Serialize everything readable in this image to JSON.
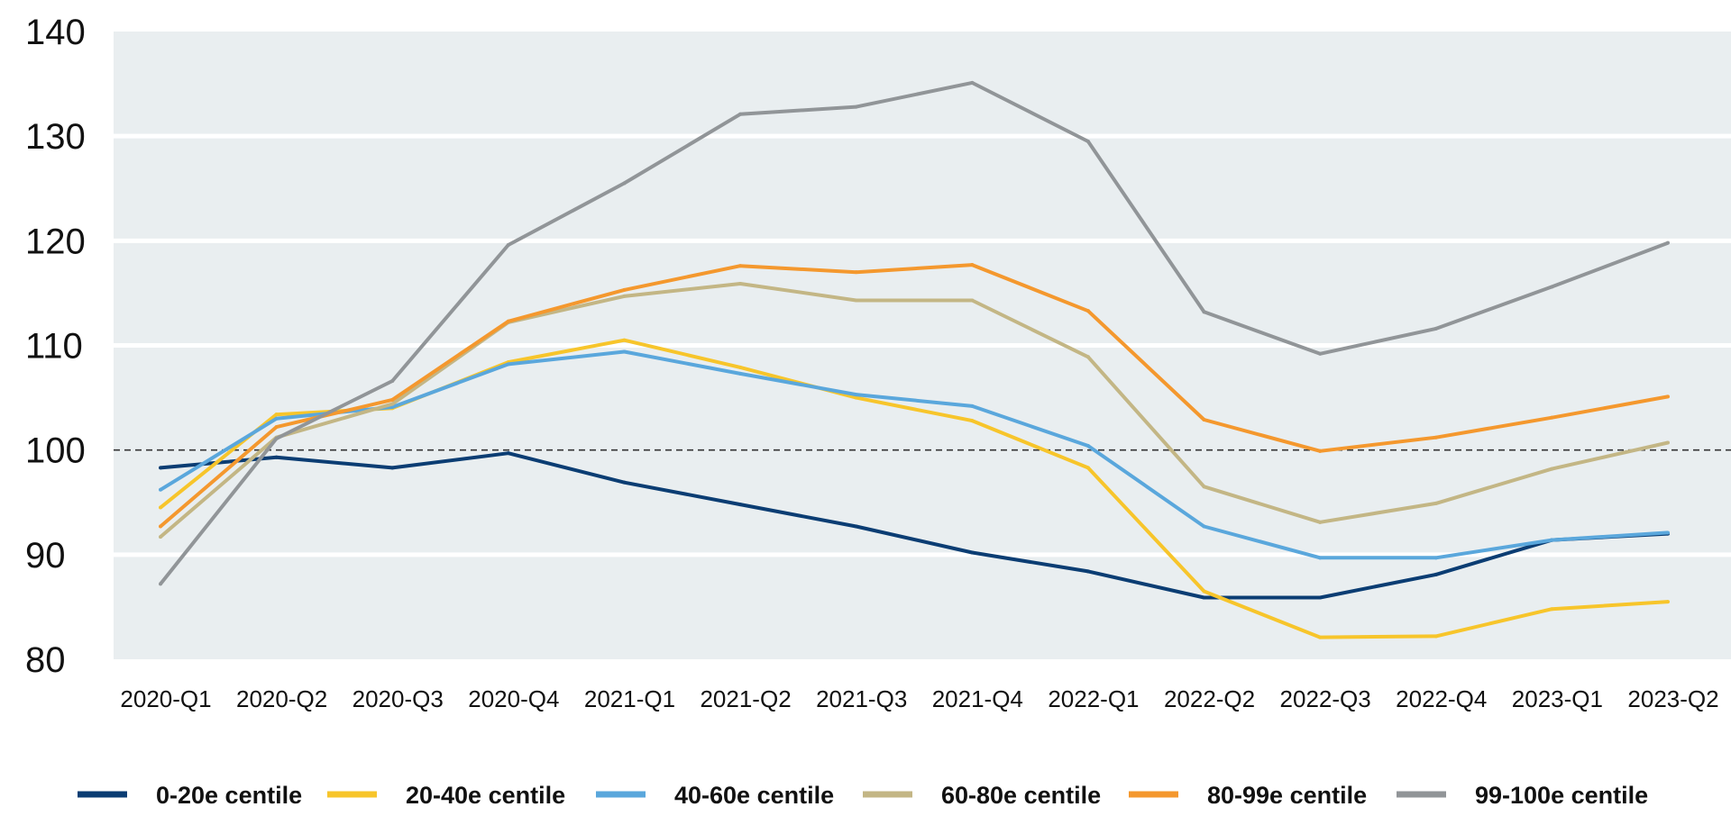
{
  "chart_data": {
    "type": "line",
    "title": "",
    "xlabel": "",
    "ylabel": "",
    "ylim": [
      80,
      140
    ],
    "yticks": [
      "140",
      "130",
      "120",
      "110",
      "100",
      "90",
      "80"
    ],
    "reference_line": 100,
    "grid": true,
    "legend_position": "bottom",
    "categories": [
      "2020-Q1",
      "2020-Q2",
      "2020-Q3",
      "2020-Q4",
      "2021-Q1",
      "2021-Q2",
      "2021-Q3",
      "2021-Q4",
      "2022-Q1",
      "2022-Q2",
      "2022-Q3",
      "2022-Q4",
      "2023-Q1",
      "2023-Q2"
    ],
    "series": [
      {
        "name": "0-20e centile",
        "color": "#0b3d73",
        "values": [
          98.3,
          99.3,
          98.3,
          99.7,
          96.9,
          94.8,
          92.7,
          90.2,
          88.4,
          85.9,
          85.9,
          88.1,
          91.4,
          92.0
        ]
      },
      {
        "name": "20-40e centile",
        "color": "#f7c52b",
        "values": [
          94.5,
          103.4,
          104.0,
          108.4,
          110.5,
          107.9,
          105.0,
          102.8,
          98.3,
          86.5,
          82.1,
          82.2,
          84.8,
          85.5
        ]
      },
      {
        "name": "40-60e centile",
        "color": "#5aa7dc",
        "values": [
          96.2,
          103.0,
          104.1,
          108.2,
          109.4,
          107.3,
          105.3,
          104.2,
          100.4,
          92.7,
          89.7,
          89.7,
          91.4,
          92.1
        ]
      },
      {
        "name": "60-80e centile",
        "color": "#c3b685",
        "values": [
          91.7,
          101.2,
          104.4,
          112.2,
          114.7,
          115.9,
          114.3,
          114.3,
          108.9,
          96.5,
          93.1,
          94.9,
          98.2,
          100.7
        ]
      },
      {
        "name": "80-99e centile",
        "color": "#f4982e",
        "values": [
          92.7,
          102.2,
          104.8,
          112.3,
          115.3,
          117.6,
          117.0,
          117.7,
          113.3,
          102.9,
          99.9,
          101.2,
          103.1,
          105.1
        ]
      },
      {
        "name": "99-100e centile",
        "color": "#919598",
        "values": [
          87.2,
          101.1,
          106.6,
          119.6,
          125.5,
          132.1,
          132.8,
          135.1,
          129.5,
          113.2,
          109.2,
          111.6,
          115.6,
          119.8
        ]
      }
    ]
  }
}
